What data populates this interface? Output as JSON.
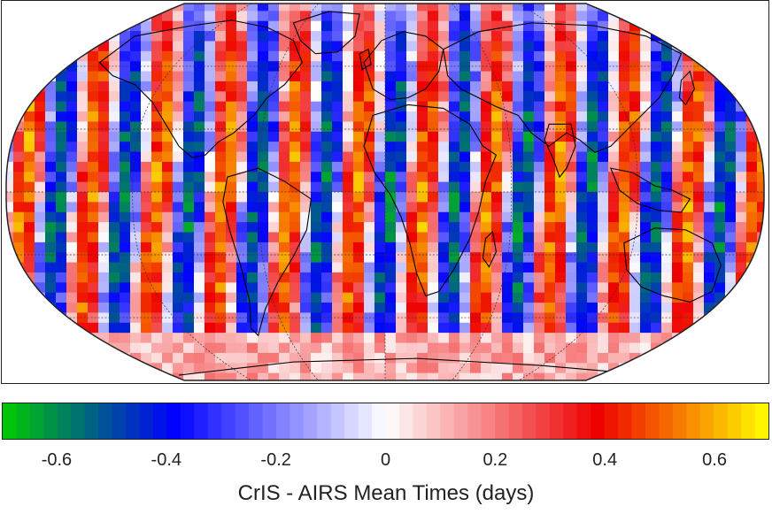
{
  "colorbar": {
    "title": "CrIS - AIRS Mean Times (days)",
    "min": -0.7,
    "max": 0.7,
    "ticks": [
      {
        "value": -0.6,
        "label": "-0.6"
      },
      {
        "value": -0.4,
        "label": "-0.4"
      },
      {
        "value": -0.2,
        "label": "-0.2"
      },
      {
        "value": 0,
        "label": "0"
      },
      {
        "value": 0.2,
        "label": "0.2"
      },
      {
        "value": 0.4,
        "label": "0.4"
      },
      {
        "value": 0.6,
        "label": "0.6"
      }
    ],
    "colors": {
      "low": "#00cc00",
      "mid_low": "#0000ff",
      "center": "#ffffff",
      "mid_high": "#ee0000",
      "high": "#ffff00"
    }
  },
  "map": {
    "projection": "robinson-like",
    "graticule": true,
    "coastlines": true,
    "field": "CrIS - AIRS Mean Times (days)"
  }
}
